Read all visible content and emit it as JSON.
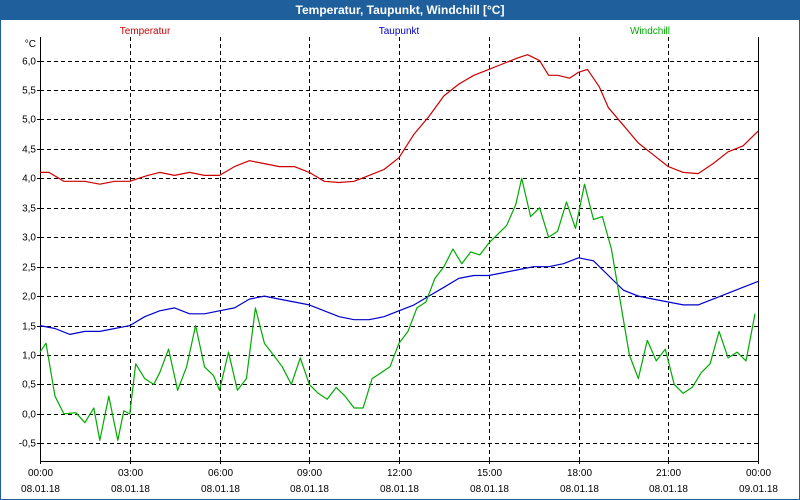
{
  "window": {
    "title": "Temperatur, Taupunkt, Windchill [°C]"
  },
  "chart_data": {
    "type": "line",
    "title": "Temperatur, Taupunkt, Windchill [°C]",
    "ylabel": "°C",
    "xlabel": "",
    "ylim": [
      -0.8,
      6.4
    ],
    "xlim": [
      0,
      24
    ],
    "grid": true,
    "legend_position": "top",
    "yticks": [
      -0.5,
      0.0,
      0.5,
      1.0,
      1.5,
      2.0,
      2.5,
      3.0,
      3.5,
      4.0,
      4.5,
      5.0,
      5.5,
      6.0
    ],
    "ytick_labels": [
      "-0,5",
      "0,0",
      "0,5",
      "1,0",
      "1,5",
      "2,0",
      "2,5",
      "3,0",
      "3,5",
      "4,0",
      "4,5",
      "5,0",
      "5,5",
      "6,0"
    ],
    "xticks": [
      {
        "value": 0,
        "time": "00:00",
        "date": "08.01.18"
      },
      {
        "value": 3,
        "time": "03:00",
        "date": "08.01.18"
      },
      {
        "value": 6,
        "time": "06:00",
        "date": "08.01.18"
      },
      {
        "value": 9,
        "time": "09:00",
        "date": "08.01.18"
      },
      {
        "value": 12,
        "time": "12:00",
        "date": "08.01.18"
      },
      {
        "value": 15,
        "time": "15:00",
        "date": "08.01.18"
      },
      {
        "value": 18,
        "time": "18:00",
        "date": "08.01.18"
      },
      {
        "value": 21,
        "time": "21:00",
        "date": "08.01.18"
      },
      {
        "value": 24,
        "time": "00:00",
        "date": "09.01.18"
      }
    ],
    "series": [
      {
        "name": "Temperatur",
        "color": "#cc0000",
        "x": [
          0,
          0.3,
          0.8,
          1.5,
          2,
          2.5,
          3,
          3.3,
          3.6,
          4,
          4.5,
          5,
          5.5,
          6,
          6.5,
          7,
          7.5,
          8,
          8.5,
          9,
          9.5,
          10,
          10.5,
          11,
          11.5,
          12,
          12.5,
          13,
          13.5,
          14,
          14.5,
          15,
          15.5,
          16,
          16.3,
          16.7,
          17,
          17.3,
          17.7,
          18,
          18.3,
          18.7,
          19,
          19.5,
          20,
          20.5,
          21,
          21.5,
          22,
          22.5,
          23,
          23.5,
          24
        ],
        "values": [
          4.1,
          4.1,
          3.95,
          3.95,
          3.9,
          3.95,
          3.95,
          4.0,
          4.05,
          4.1,
          4.05,
          4.1,
          4.05,
          4.05,
          4.2,
          4.3,
          4.25,
          4.2,
          4.2,
          4.1,
          3.95,
          3.93,
          3.95,
          4.05,
          4.15,
          4.35,
          4.75,
          5.05,
          5.4,
          5.6,
          5.75,
          5.85,
          5.95,
          6.05,
          6.1,
          6.0,
          5.75,
          5.75,
          5.7,
          5.8,
          5.85,
          5.55,
          5.2,
          4.9,
          4.6,
          4.4,
          4.2,
          4.1,
          4.08,
          4.25,
          4.45,
          4.55,
          4.8
        ]
      },
      {
        "name": "Taupunkt",
        "color": "#0000cc",
        "x": [
          0,
          0.5,
          1,
          1.5,
          2,
          2.5,
          3,
          3.5,
          4,
          4.5,
          5,
          5.5,
          6,
          6.5,
          7,
          7.5,
          8,
          8.5,
          9,
          9.5,
          10,
          10.5,
          11,
          11.5,
          12,
          12.5,
          13,
          13.5,
          14,
          14.5,
          15,
          15.5,
          16,
          16.5,
          17,
          17.5,
          18,
          18.5,
          19,
          19.5,
          20,
          20.5,
          21,
          21.5,
          22,
          22.5,
          23,
          23.5,
          24
        ],
        "values": [
          1.5,
          1.45,
          1.35,
          1.4,
          1.4,
          1.45,
          1.5,
          1.65,
          1.75,
          1.8,
          1.7,
          1.7,
          1.75,
          1.8,
          1.95,
          2.0,
          1.95,
          1.9,
          1.85,
          1.75,
          1.65,
          1.6,
          1.6,
          1.65,
          1.75,
          1.85,
          2.0,
          2.15,
          2.3,
          2.35,
          2.35,
          2.4,
          2.45,
          2.5,
          2.5,
          2.55,
          2.65,
          2.6,
          2.35,
          2.1,
          2.0,
          1.95,
          1.9,
          1.85,
          1.85,
          1.95,
          2.05,
          2.15,
          2.25
        ]
      },
      {
        "name": "Windchill",
        "color": "#00aa00",
        "x": [
          0,
          0.2,
          0.5,
          0.8,
          1.2,
          1.5,
          1.8,
          2,
          2.3,
          2.6,
          2.8,
          3.0,
          3.2,
          3.5,
          3.8,
          4,
          4.3,
          4.6,
          4.9,
          5.2,
          5.5,
          5.8,
          6,
          6.3,
          6.6,
          6.9,
          7.2,
          7.5,
          7.8,
          8.1,
          8.4,
          8.7,
          9,
          9.3,
          9.6,
          9.9,
          10.2,
          10.5,
          10.8,
          11.1,
          11.4,
          11.7,
          12,
          12.3,
          12.6,
          12.9,
          13.2,
          13.5,
          13.8,
          14.1,
          14.4,
          14.7,
          15,
          15.3,
          15.6,
          15.9,
          16.1,
          16.4,
          16.7,
          17,
          17.3,
          17.6,
          17.9,
          18.2,
          18.5,
          18.8,
          19.1,
          19.4,
          19.7,
          20,
          20.3,
          20.6,
          20.9,
          21.2,
          21.5,
          21.8,
          22.1,
          22.4,
          22.7,
          23,
          23.3,
          23.6,
          23.9
        ],
        "values": [
          1.05,
          1.2,
          0.3,
          0.0,
          0.02,
          -0.15,
          0.1,
          -0.45,
          0.3,
          -0.45,
          0.05,
          0.0,
          0.85,
          0.6,
          0.5,
          0.7,
          1.1,
          0.4,
          0.8,
          1.5,
          0.8,
          0.65,
          0.4,
          1.05,
          0.4,
          0.6,
          1.8,
          1.2,
          1.0,
          0.8,
          0.5,
          0.95,
          0.5,
          0.35,
          0.25,
          0.45,
          0.3,
          0.1,
          0.1,
          0.6,
          0.7,
          0.8,
          1.2,
          1.4,
          1.8,
          1.9,
          2.3,
          2.5,
          2.8,
          2.55,
          2.75,
          2.7,
          2.9,
          3.05,
          3.2,
          3.55,
          4.0,
          3.35,
          3.5,
          3.0,
          3.1,
          3.6,
          3.15,
          3.9,
          3.3,
          3.35,
          2.8,
          1.9,
          1.0,
          0.6,
          1.25,
          0.9,
          1.1,
          0.5,
          0.35,
          0.45,
          0.7,
          0.85,
          1.4,
          0.95,
          1.05,
          0.9,
          1.7
        ]
      }
    ]
  }
}
